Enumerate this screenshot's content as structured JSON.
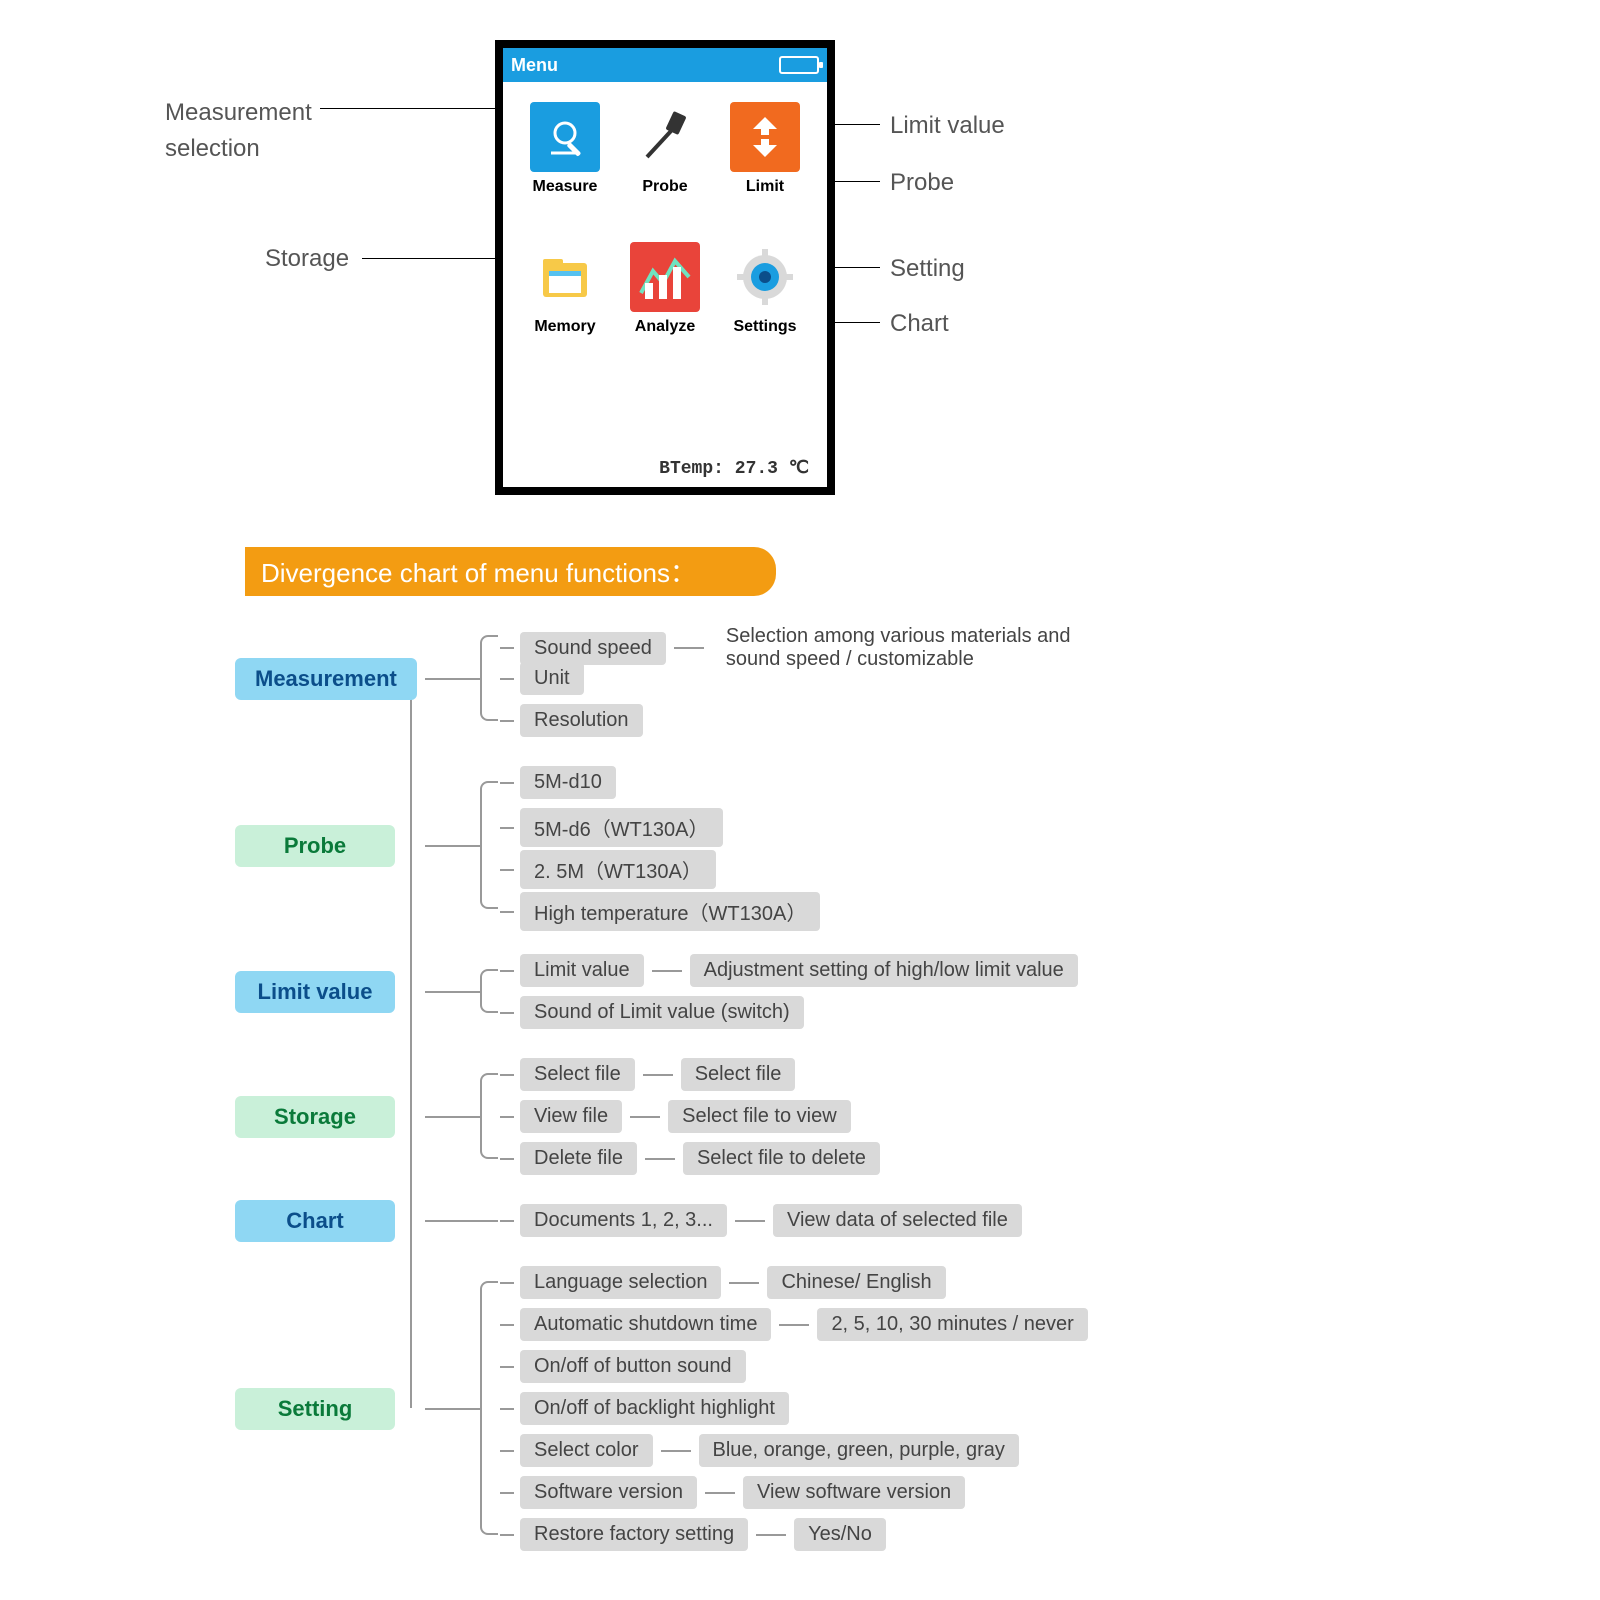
{
  "device": {
    "header_title": "Menu",
    "btemp_label": "BTemp: 27.3 ℃",
    "items": [
      {
        "label": "Measure",
        "selected": true
      },
      {
        "label": "Probe"
      },
      {
        "label": "Limit"
      },
      {
        "label": "Memory"
      },
      {
        "label": "Analyze"
      },
      {
        "label": "Settings"
      }
    ]
  },
  "callouts": {
    "measurement_l1": "Measurement",
    "measurement_l2": "selection",
    "storage": "Storage",
    "limit": "Limit value",
    "probe": "Probe",
    "setting": "Setting",
    "chart": "Chart"
  },
  "section_title": "Divergence chart of menu functions：",
  "tree": {
    "colors": {
      "blue": "#8fd7f3",
      "green": "#c9f0d9",
      "pill": "#d9d9d9"
    },
    "branches": [
      {
        "label": "Measurement",
        "style": "blue",
        "items": [
          {
            "text": "Sound speed",
            "note": "Selection among various materials and sound speed / customizable"
          },
          {
            "text": "Unit"
          },
          {
            "text": "Resolution"
          }
        ]
      },
      {
        "label": "Probe",
        "style": "green",
        "items": [
          {
            "text": "5M-d10"
          },
          {
            "text": "5M-d6（WT130A）"
          },
          {
            "text": "2. 5M（WT130A）"
          },
          {
            "text": "High temperature（WT130A）"
          }
        ]
      },
      {
        "label": "Limit value",
        "style": "blue",
        "items": [
          {
            "text": "Limit value",
            "note": "Adjustment setting of high/low limit value"
          },
          {
            "text": "Sound of Limit value (switch)"
          }
        ]
      },
      {
        "label": "Storage",
        "style": "green",
        "items": [
          {
            "text": "Select file",
            "note": "Select file"
          },
          {
            "text": "View file",
            "note": "Select file to view"
          },
          {
            "text": "Delete file",
            "note": "Select file to delete"
          }
        ]
      },
      {
        "label": "Chart",
        "style": "blue",
        "items": [
          {
            "text": "Documents 1, 2, 3...",
            "note": "View data of selected file"
          }
        ]
      },
      {
        "label": "Setting",
        "style": "green",
        "items": [
          {
            "text": "Language selection",
            "note": "Chinese/ English"
          },
          {
            "text": "Automatic shutdown time",
            "note": "2, 5, 10, 30 minutes / never"
          },
          {
            "text": "On/off of button sound"
          },
          {
            "text": "On/off of backlight highlight"
          },
          {
            "text": "Select color",
            "note": "Blue, orange, green, purple, gray"
          },
          {
            "text": "Software version",
            "note": "View software version"
          },
          {
            "text": "Restore factory setting",
            "note": "Yes/No"
          }
        ]
      }
    ]
  }
}
